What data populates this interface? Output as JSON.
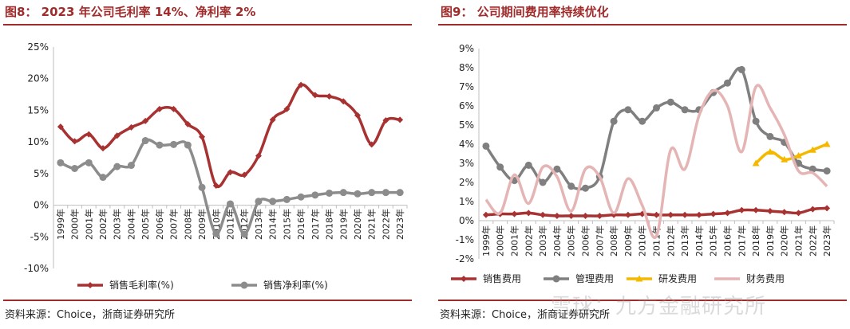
{
  "panels": [
    {
      "title": "图8：  2023 年公司毛利率 14%、净利率 2%",
      "source": "资料来源：Choice，浙商证券研究所"
    },
    {
      "title": "图9：  公司期间费用率持续优化",
      "source": "资料来源：Choice，浙商证券研究所"
    }
  ],
  "watermark": "雪球：九方金融研究所",
  "colors": {
    "accent": "#a02b2b"
  },
  "chart_data": [
    {
      "type": "line",
      "categories": [
        "1999年",
        "2000年",
        "2001年",
        "2002年",
        "2003年",
        "2004年",
        "2005年",
        "2006年",
        "2007年",
        "2008年",
        "2009年",
        "2010年",
        "2011年",
        "2012年",
        "2013年",
        "2014年",
        "2015年",
        "2016年",
        "2017年",
        "2018年",
        "2019年",
        "2020年",
        "2021年",
        "2022年",
        "2023年"
      ],
      "ylim": [
        -10,
        25
      ],
      "yticks": [
        "25%",
        "20%",
        "15%",
        "10%",
        "5%",
        "0%",
        "-5%",
        "-10%"
      ],
      "ytick_values": [
        25,
        20,
        15,
        10,
        5,
        0,
        -5,
        -10
      ],
      "series": [
        {
          "name": "销售毛利率(%)",
          "color": "#a83232",
          "marker": "diamond",
          "values": [
            12.4,
            10.1,
            11.2,
            9.0,
            11.0,
            12.3,
            13.3,
            15.2,
            15.2,
            12.8,
            10.8,
            3.1,
            5.2,
            4.8,
            7.8,
            13.5,
            15.2,
            19.0,
            17.4,
            17.2,
            16.4,
            14.2,
            9.6,
            13.4,
            13.5
          ]
        },
        {
          "name": "销售净利率(%)",
          "color": "#8c8c8c",
          "marker": "circle",
          "values": [
            6.7,
            5.8,
            6.7,
            4.4,
            6.1,
            6.3,
            10.2,
            9.5,
            9.6,
            9.5,
            2.8,
            -4.5,
            0.2,
            -4.6,
            0.6,
            0.6,
            0.9,
            1.3,
            1.6,
            1.9,
            2.0,
            1.8,
            2.0,
            2.0,
            2.0
          ]
        }
      ]
    },
    {
      "type": "line",
      "categories": [
        "1999年",
        "2000年",
        "2001年",
        "2002年",
        "2003年",
        "2004年",
        "2005年",
        "2006年",
        "2007年",
        "2008年",
        "2009年",
        "2010年",
        "2011年",
        "2012年",
        "2013年",
        "2014年",
        "2015年",
        "2016年",
        "2017年",
        "2018年",
        "2019年",
        "2020年",
        "2021年",
        "2022年",
        "2023年"
      ],
      "ylim": [
        -2,
        9
      ],
      "yticks": [
        "9%",
        "8%",
        "7%",
        "6%",
        "5%",
        "4%",
        "3%",
        "2%",
        "1%",
        "0%",
        "-1%",
        "-2%"
      ],
      "ytick_values": [
        9,
        8,
        7,
        6,
        5,
        4,
        3,
        2,
        1,
        0,
        -1,
        -2
      ],
      "series": [
        {
          "name": "销售费用",
          "color": "#a83232",
          "marker": "diamond",
          "values": [
            0.3,
            0.35,
            0.35,
            0.4,
            0.3,
            0.25,
            0.25,
            0.25,
            0.25,
            0.3,
            0.3,
            0.35,
            0.3,
            0.3,
            0.3,
            0.3,
            0.35,
            0.4,
            0.55,
            0.55,
            0.5,
            0.45,
            0.4,
            0.6,
            0.65
          ]
        },
        {
          "name": "管理费用",
          "color": "#7f7f7f",
          "marker": "circle",
          "values": [
            3.9,
            2.8,
            2.1,
            2.9,
            2.0,
            2.7,
            1.8,
            1.7,
            2.3,
            5.2,
            5.8,
            5.2,
            5.9,
            6.2,
            5.8,
            5.8,
            6.7,
            7.2,
            7.9,
            5.2,
            4.4,
            4.1,
            3.0,
            2.7,
            2.6
          ]
        },
        {
          "name": "研发费用",
          "color": "#f5b800",
          "marker": "triangle",
          "values": [
            null,
            null,
            null,
            null,
            null,
            null,
            null,
            null,
            null,
            null,
            null,
            null,
            null,
            null,
            null,
            null,
            null,
            null,
            null,
            3.0,
            3.6,
            3.2,
            3.4,
            3.7,
            4.0
          ]
        },
        {
          "name": "财务费用",
          "color": "#e5b5b5",
          "marker": "none",
          "values": [
            1.1,
            0.4,
            2.4,
            0.9,
            2.8,
            2.3,
            0.5,
            2.7,
            2.3,
            0.4,
            2.2,
            0.8,
            -0.8,
            3.7,
            2.7,
            5.5,
            6.8,
            6.0,
            3.6,
            7.0,
            5.9,
            4.5,
            2.6,
            2.5,
            1.8
          ]
        }
      ]
    }
  ]
}
